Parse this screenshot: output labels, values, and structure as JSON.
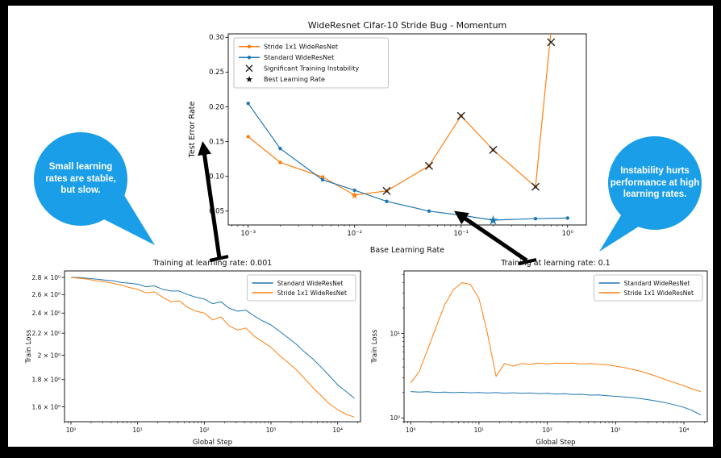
{
  "figure": {
    "background": "#ffffff",
    "frame_color": "#000000",
    "accent_blue": "#1f77b4",
    "accent_orange": "#ff7f0e",
    "callout_blue": "#1a9ee8"
  },
  "callouts": {
    "left": {
      "text": "Small learning rates are stable, but slow."
    },
    "right": {
      "text": "Instability hurts performance at high learning rates."
    }
  },
  "chart_data": [
    {
      "id": "top",
      "type": "line",
      "title": "WideResnet Cifar-10 Stride Bug - Momentum",
      "xlabel": "Base Learning Rate",
      "ylabel": "Test Error Rate",
      "xscale": "log",
      "yscale": "linear",
      "xlim": [
        0.00065,
        1.5
      ],
      "ylim": [
        0.03,
        0.305
      ],
      "xticks": [
        0.001,
        0.01,
        0.1,
        1
      ],
      "xtick_labels": [
        "10⁻³",
        "10⁻²",
        "10⁻¹",
        "10⁰"
      ],
      "yticks": [
        0.05,
        0.1,
        0.15,
        0.2,
        0.25,
        0.3
      ],
      "ytick_labels": [
        "0.05",
        "0.10",
        "0.15",
        "0.20",
        "0.25",
        "0.30"
      ],
      "legend_position": "top-left",
      "grid": false,
      "x_minor": true,
      "y_minor": false,
      "series": [
        {
          "name": "Stride 1x1 WideResNet",
          "color": "#ff7f0e",
          "marker": "dot",
          "x": [
            0.001,
            0.002,
            0.005,
            0.01,
            0.02,
            0.05,
            0.1,
            0.2,
            0.5,
            1.0
          ],
          "y": [
            0.157,
            0.12,
            0.099,
            0.073,
            0.079,
            0.115,
            0.187,
            0.138,
            0.085,
            0.55
          ]
        },
        {
          "name": "Standard WideResNet",
          "color": "#1f77b4",
          "marker": "dot",
          "x": [
            0.001,
            0.002,
            0.005,
            0.01,
            0.02,
            0.05,
            0.1,
            0.2,
            0.5,
            1.0
          ],
          "y": [
            0.205,
            0.14,
            0.095,
            0.08,
            0.064,
            0.05,
            0.044,
            0.037,
            0.039,
            0.04
          ]
        }
      ],
      "annotations": {
        "instability": {
          "label": "Significant Training Instability",
          "marker": "x",
          "color": "#262626",
          "points": [
            [
              0.02,
              0.079
            ],
            [
              0.05,
              0.115
            ],
            [
              0.1,
              0.187
            ],
            [
              0.2,
              0.138
            ],
            [
              0.5,
              0.085
            ],
            [
              0.7,
              0.293
            ]
          ]
        },
        "best": {
          "label": "Best Learning Rate",
          "marker": "star",
          "points": [
            {
              "x": 0.01,
              "y": 0.073,
              "color": "#ff7f0e",
              "size": 12
            },
            {
              "x": 0.2,
              "y": 0.037,
              "color": "#1f77b4",
              "size": 16
            }
          ]
        }
      }
    },
    {
      "id": "bl",
      "type": "line",
      "title": "Training at learning rate: 0.001",
      "xlabel": "Global Step",
      "ylabel": "Train Loss",
      "xscale": "log",
      "yscale": "log",
      "xlim": [
        0.8,
        22000
      ],
      "ylim": [
        1.5,
        2.88
      ],
      "xticks": [
        1,
        10,
        100,
        1000,
        10000
      ],
      "xtick_labels": [
        "10⁰",
        "10¹",
        "10²",
        "10³",
        "10⁴"
      ],
      "yticks": [
        1.6,
        1.8,
        2.0,
        2.2,
        2.4,
        2.6,
        2.8
      ],
      "ytick_labels": [
        "1.6 × 10⁰",
        "1.8 × 10⁰",
        "2 × 10⁰",
        "2.2 × 10⁰",
        "2.4 × 10⁰",
        "2.6 × 10⁰",
        "2.8 × 10⁰"
      ],
      "legend_position": "top-right",
      "grid": false,
      "x_minor": true,
      "y_minor": false,
      "series": [
        {
          "name": "Standard WideResNet",
          "color": "#1f77b4",
          "marker": "none",
          "x": [
            1,
            1.33,
            1.78,
            2.37,
            3.16,
            4.22,
            5.62,
            7.5,
            10,
            13.3,
            17.8,
            23.7,
            31.6,
            42.2,
            56.2,
            75,
            100,
            133,
            178,
            237,
            316,
            422,
            562,
            750,
            1000,
            1330,
            1780,
            2370,
            3160,
            4220,
            5620,
            7500,
            10000,
            13300,
            17800
          ],
          "y": [
            2.8,
            2.8,
            2.79,
            2.78,
            2.77,
            2.76,
            2.74,
            2.73,
            2.72,
            2.69,
            2.7,
            2.66,
            2.64,
            2.64,
            2.6,
            2.57,
            2.55,
            2.5,
            2.52,
            2.45,
            2.42,
            2.43,
            2.37,
            2.32,
            2.28,
            2.22,
            2.16,
            2.1,
            2.03,
            1.97,
            1.9,
            1.83,
            1.76,
            1.71,
            1.66
          ]
        },
        {
          "name": "Stride 1x1 WideResNet",
          "color": "#ff7f0e",
          "marker": "none",
          "x": [
            1,
            1.33,
            1.78,
            2.37,
            3.16,
            4.22,
            5.62,
            7.5,
            10,
            13.3,
            17.8,
            23.7,
            31.6,
            42.2,
            56.2,
            75,
            100,
            133,
            178,
            237,
            316,
            422,
            562,
            750,
            1000,
            1330,
            1780,
            2370,
            3160,
            4220,
            5620,
            7500,
            10000,
            13300,
            17800
          ],
          "y": [
            2.8,
            2.79,
            2.78,
            2.76,
            2.75,
            2.73,
            2.71,
            2.68,
            2.66,
            2.62,
            2.63,
            2.57,
            2.52,
            2.53,
            2.46,
            2.42,
            2.4,
            2.33,
            2.36,
            2.27,
            2.23,
            2.25,
            2.17,
            2.12,
            2.07,
            2.0,
            1.94,
            1.88,
            1.81,
            1.74,
            1.68,
            1.62,
            1.58,
            1.55,
            1.53
          ]
        }
      ]
    },
    {
      "id": "br",
      "type": "line",
      "title": "Training at learning rate: 0.1",
      "xlabel": "Global Step",
      "ylabel": "Train Loss",
      "xscale": "log",
      "yscale": "log",
      "xlim": [
        0.8,
        22000
      ],
      "ylim": [
        0.9,
        55
      ],
      "xticks": [
        1,
        10,
        100,
        1000,
        10000
      ],
      "xtick_labels": [
        "10⁰",
        "10¹",
        "10²",
        "10³",
        "10⁴"
      ],
      "yticks": [
        1,
        10
      ],
      "ytick_labels": [
        "10⁰",
        "10¹"
      ],
      "legend_position": "top-right",
      "grid": false,
      "x_minor": true,
      "y_minor": true,
      "series": [
        {
          "name": "Standard WideResNet",
          "color": "#1f77b4",
          "marker": "none",
          "x": [
            1,
            1.33,
            1.78,
            2.37,
            3.16,
            4.22,
            5.62,
            7.5,
            10,
            13.3,
            17.8,
            23.7,
            31.6,
            42.2,
            56.2,
            75,
            100,
            133,
            178,
            237,
            316,
            422,
            562,
            750,
            1000,
            1330,
            1780,
            2370,
            3160,
            4220,
            5620,
            7500,
            10000,
            13300,
            17800
          ],
          "y": [
            2.05,
            2.02,
            2.04,
            2.0,
            2.02,
            1.99,
            2.01,
            1.98,
            2.0,
            1.97,
            1.99,
            1.96,
            1.98,
            1.95,
            1.97,
            1.93,
            1.95,
            1.91,
            1.93,
            1.89,
            1.9,
            1.86,
            1.87,
            1.83,
            1.8,
            1.77,
            1.73,
            1.69,
            1.63,
            1.57,
            1.5,
            1.42,
            1.33,
            1.22,
            1.08
          ]
        },
        {
          "name": "Stride 1x1 WideResNet",
          "color": "#ff7f0e",
          "marker": "none",
          "x": [
            1,
            1.33,
            1.78,
            2.37,
            3.16,
            4.22,
            5.62,
            7.5,
            10,
            13.3,
            17.8,
            23.7,
            31.6,
            42.2,
            56.2,
            75,
            100,
            133,
            178,
            237,
            316,
            422,
            562,
            750,
            1000,
            1330,
            1780,
            2370,
            3160,
            4220,
            5620,
            7500,
            10000,
            13300,
            17800
          ],
          "y": [
            2.6,
            3.5,
            6.5,
            12,
            22,
            33,
            40,
            38,
            26,
            10,
            3.1,
            4.4,
            4.1,
            4.4,
            4.3,
            4.45,
            4.35,
            4.45,
            4.4,
            4.45,
            4.35,
            4.4,
            4.3,
            4.25,
            4.1,
            3.95,
            3.75,
            3.55,
            3.3,
            3.05,
            2.8,
            2.6,
            2.4,
            2.2,
            2.05
          ]
        }
      ]
    }
  ]
}
